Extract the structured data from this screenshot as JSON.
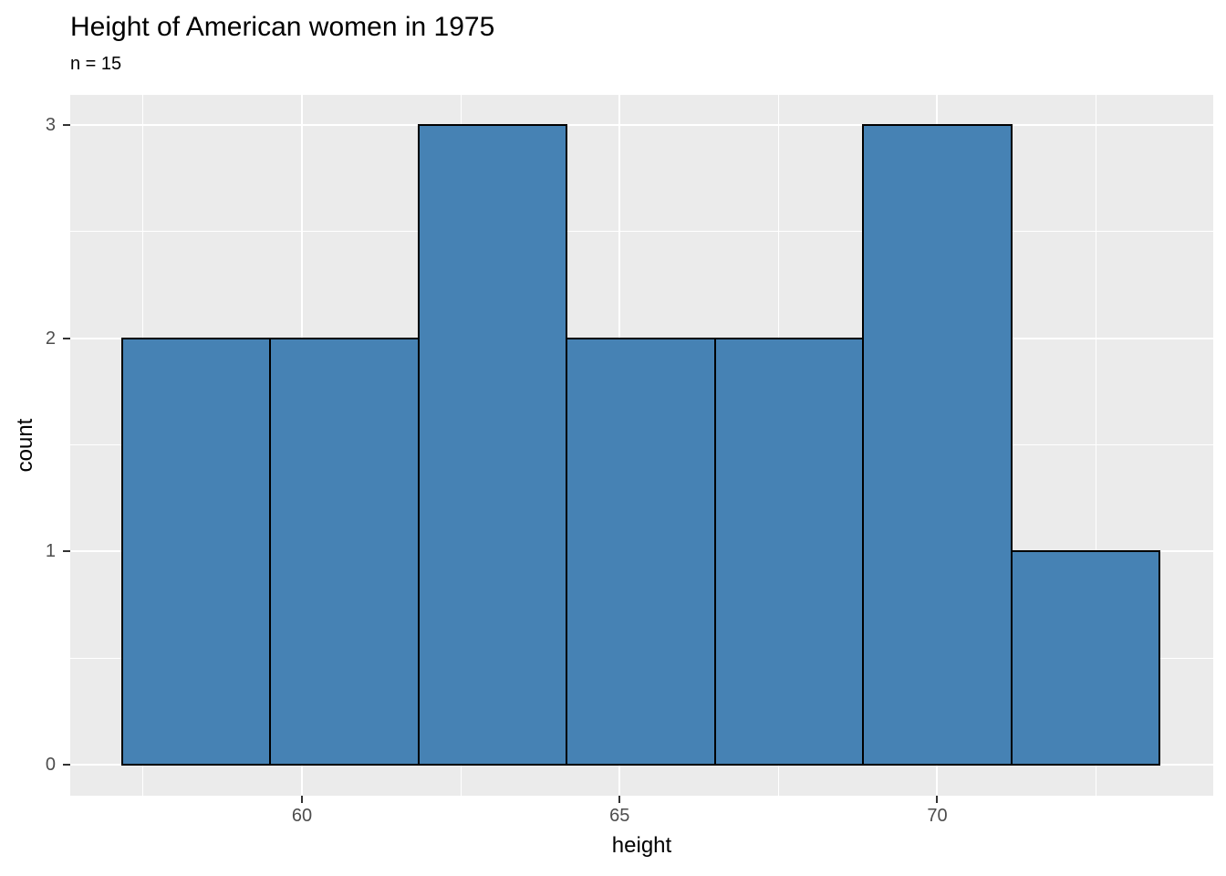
{
  "chart_data": {
    "type": "histogram",
    "title": "Height of American women in 1975",
    "subtitle": "n = 15",
    "xlabel": "height",
    "ylabel": "count",
    "bins": {
      "edges": [
        57.1667,
        59.5,
        61.8333,
        64.1667,
        66.5,
        68.8333,
        71.1667,
        73.5
      ],
      "counts": [
        2,
        2,
        3,
        2,
        2,
        3,
        1
      ]
    },
    "n_total": 15,
    "x_ticks": [
      60,
      65,
      70
    ],
    "y_ticks": [
      0,
      1,
      2,
      3
    ],
    "x_minor_gridlines": [
      57.5,
      62.5,
      67.5,
      72.5
    ],
    "y_minor_gridlines": [
      0.5,
      1.5,
      2.5
    ],
    "xlim": [
      56.354,
      74.343
    ],
    "ylim": [
      -0.1455,
      3.1415
    ],
    "legend": "none",
    "grid": "on"
  },
  "colors": {
    "bar_fill": "#4682B4",
    "bar_stroke": "#000000",
    "panel_bg": "#EBEBEB",
    "grid_color": "#FFFFFF",
    "tick_mark": "#333333",
    "tick_text": "#4D4D4D",
    "title_text": "#000000"
  }
}
